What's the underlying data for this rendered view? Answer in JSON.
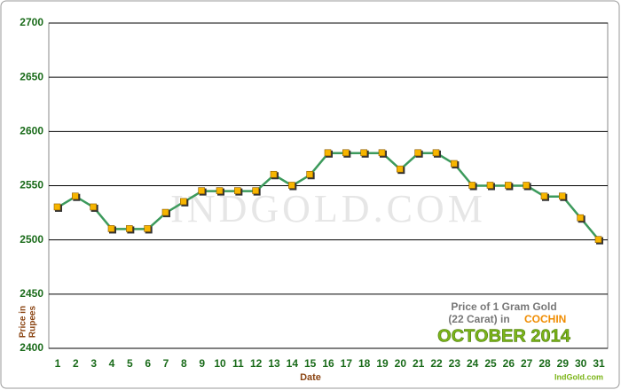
{
  "chart_data": {
    "type": "line",
    "x_label": "Date",
    "y_label_lines": [
      "Price in",
      "Rupees"
    ],
    "watermark": "INDGOLD.COM",
    "caption": {
      "line1": "Price of 1 Gram Gold",
      "line2": "(22 Carat) in",
      "city": "COCHIN",
      "period": "OCTOBER 2014",
      "site": "IndGold.com"
    },
    "categories": [
      "1",
      "2",
      "3",
      "4",
      "5",
      "6",
      "7",
      "8",
      "9",
      "10",
      "11",
      "12",
      "13",
      "14",
      "15",
      "16",
      "17",
      "18",
      "19",
      "20",
      "21",
      "22",
      "23",
      "24",
      "25",
      "26",
      "27",
      "28",
      "29",
      "30",
      "31"
    ],
    "series": [
      {
        "color": "#3c9a5c",
        "marker_color": "#f7b500",
        "values": [
          2530,
          2540,
          2530,
          2510,
          2510,
          2510,
          2525,
          2535,
          2545,
          2545,
          2545,
          2545,
          2560,
          2550,
          2560,
          2580,
          2580,
          2580,
          2580,
          2565,
          2580,
          2580,
          2570,
          2550,
          2550,
          2550,
          2550,
          2540,
          2540,
          2520,
          2500
        ]
      }
    ],
    "ylim": [
      2400,
      2700
    ],
    "yticks": [
      2400,
      2450,
      2500,
      2550,
      2600,
      2650,
      2700
    ],
    "grid": true
  }
}
